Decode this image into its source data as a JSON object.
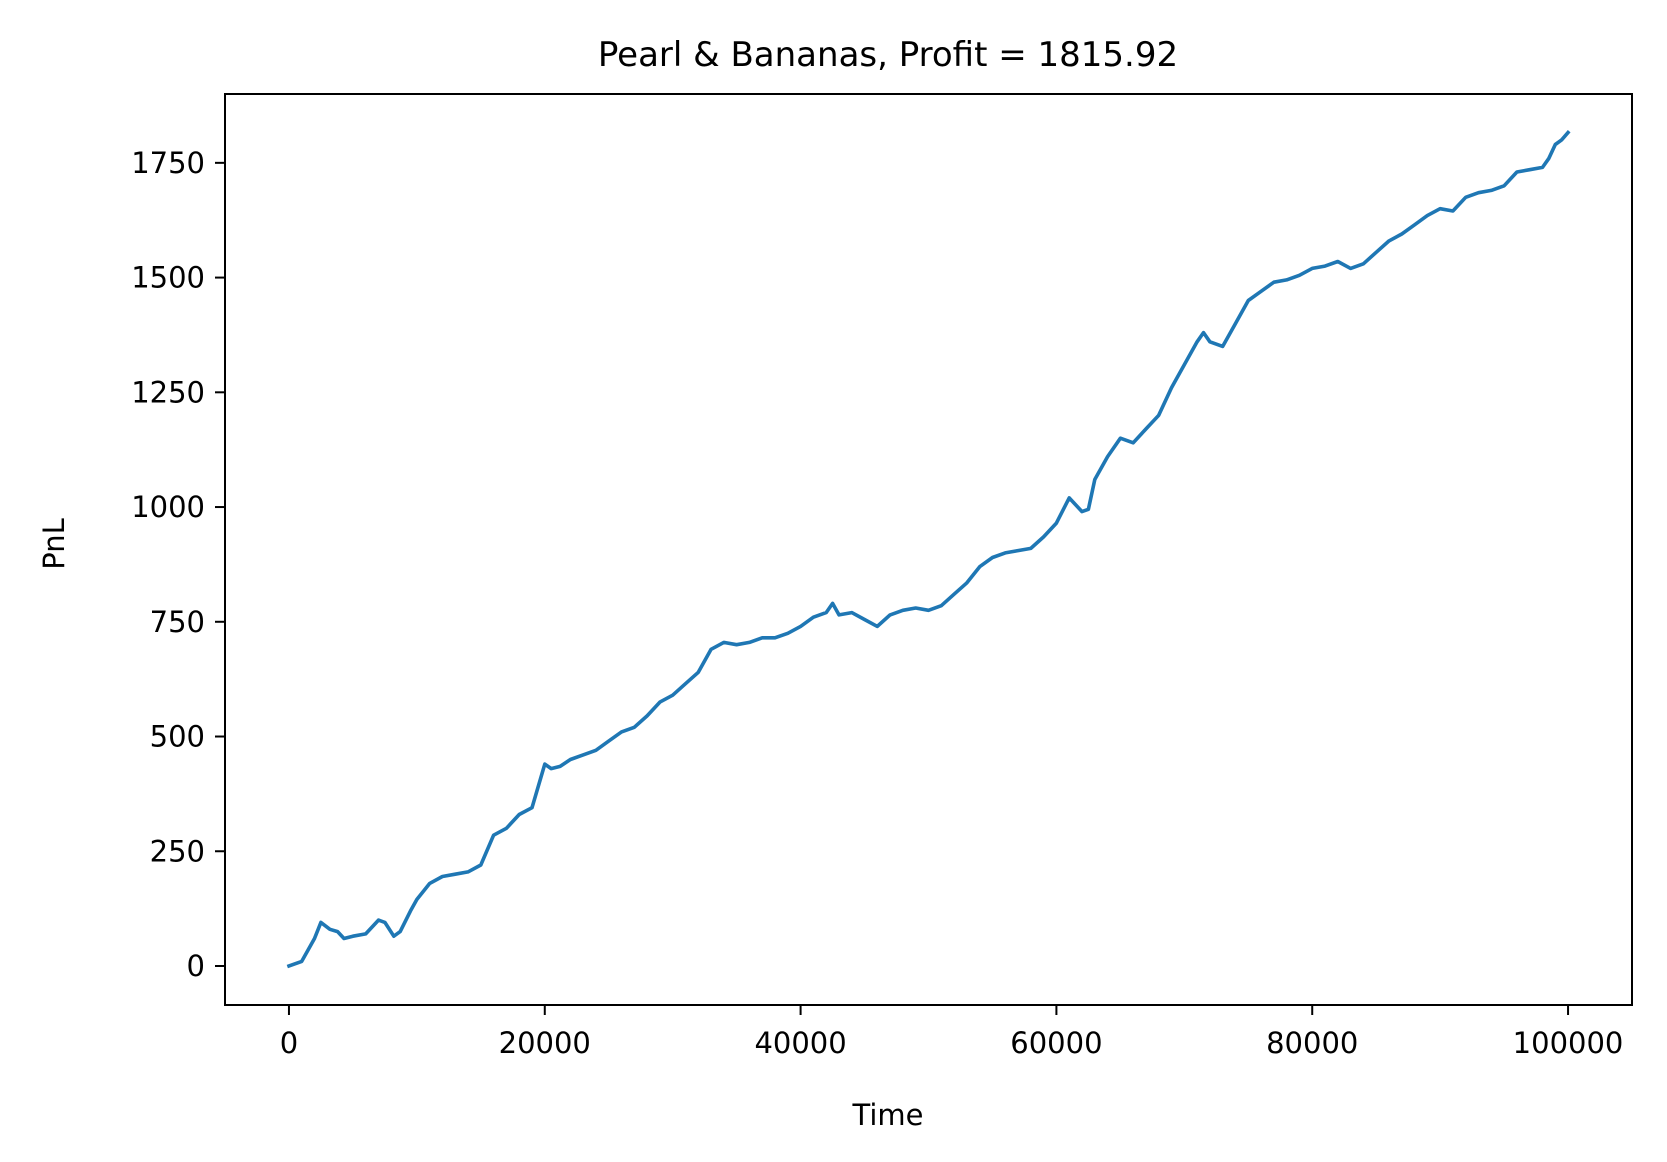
{
  "chart_data": {
    "type": "line",
    "title": "Pearl & Bananas, Profit = 1815.92",
    "xlabel": "Time",
    "ylabel": "PnL",
    "xlim": [
      -5000,
      105000
    ],
    "ylim": [
      -85,
      1900
    ],
    "xticks": [
      0,
      20000,
      40000,
      60000,
      80000,
      100000
    ],
    "xtick_labels": [
      "0",
      "20000",
      "40000",
      "60000",
      "80000",
      "100000"
    ],
    "yticks": [
      0,
      250,
      500,
      750,
      1000,
      1250,
      1500,
      1750
    ],
    "ytick_labels": [
      "0",
      "250",
      "500",
      "750",
      "1000",
      "1250",
      "1500",
      "1750"
    ],
    "grid": false,
    "series": [
      {
        "color": "#1f77b4",
        "x": [
          0,
          1000,
          2000,
          2500,
          3200,
          3800,
          4300,
          5000,
          6000,
          7000,
          7500,
          8200,
          8700,
          9500,
          10000,
          11000,
          12000,
          13000,
          14000,
          15000,
          16000,
          17000,
          18000,
          19000,
          20000,
          20500,
          21200,
          22000,
          23000,
          24000,
          25000,
          26000,
          27000,
          28000,
          29000,
          30000,
          31000,
          32000,
          33000,
          34000,
          35000,
          36000,
          37000,
          38000,
          39000,
          40000,
          41000,
          42000,
          42500,
          43000,
          44000,
          45000,
          46000,
          47000,
          48000,
          49000,
          50000,
          51000,
          52000,
          53000,
          54000,
          55000,
          56000,
          57000,
          58000,
          59000,
          60000,
          61000,
          62000,
          62500,
          63000,
          64000,
          65000,
          66000,
          67000,
          68000,
          69000,
          70000,
          71000,
          71500,
          72000,
          73000,
          74000,
          75000,
          76000,
          77000,
          78000,
          79000,
          80000,
          81000,
          82000,
          83000,
          84000,
          85000,
          86000,
          87000,
          88000,
          89000,
          90000,
          91000,
          92000,
          93000,
          94000,
          95000,
          96000,
          97000,
          98000,
          98500,
          99000,
          99500,
          100000
        ],
        "y": [
          0,
          10,
          60,
          95,
          80,
          75,
          60,
          65,
          70,
          100,
          95,
          65,
          75,
          120,
          145,
          180,
          195,
          200,
          205,
          220,
          285,
          300,
          330,
          345,
          440,
          430,
          435,
          450,
          460,
          470,
          490,
          510,
          520,
          545,
          575,
          590,
          615,
          640,
          690,
          705,
          700,
          705,
          715,
          715,
          725,
          740,
          760,
          770,
          790,
          765,
          770,
          755,
          740,
          765,
          775,
          780,
          775,
          785,
          810,
          835,
          870,
          890,
          900,
          905,
          910,
          935,
          965,
          1020,
          990,
          995,
          1060,
          1110,
          1150,
          1140,
          1170,
          1200,
          1260,
          1310,
          1360,
          1380,
          1360,
          1350,
          1400,
          1450,
          1470,
          1490,
          1495,
          1505,
          1520,
          1525,
          1535,
          1520,
          1530,
          1555,
          1580,
          1595,
          1615,
          1635,
          1650,
          1645,
          1675,
          1685,
          1690,
          1700,
          1730,
          1735,
          1740,
          1760,
          1790,
          1800,
          1815.92
        ]
      }
    ]
  }
}
